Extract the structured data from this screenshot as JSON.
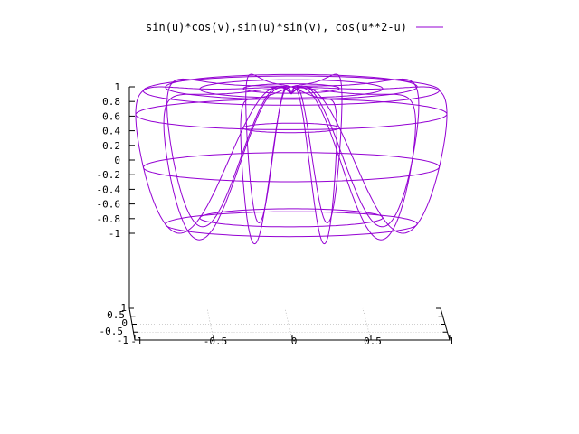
{
  "chart_data": {
    "type": "surface",
    "title": "",
    "legend": {
      "entry": "sin(u)*cos(v),sin(u)*sin(v), cos(u**2-u)",
      "color": "#9400d3",
      "placement": "top-right"
    },
    "parametric": {
      "x": "sin(u)*cos(v)",
      "y": "sin(u)*sin(v)",
      "z": "cos(u**2-u)"
    },
    "z_ticks": [
      "1",
      "0.8",
      "0.6",
      "0.4",
      "0.2",
      "0",
      "-0.2",
      "-0.4",
      "-0.6",
      "-0.8",
      "-1"
    ],
    "x_ticks": [
      "-1",
      "-0.5",
      "0",
      "0.5",
      "1"
    ],
    "y_ticks": [
      "1",
      "0.5",
      "0",
      "-0.5",
      "-1"
    ],
    "xlim": [
      -1,
      1
    ],
    "ylim": [
      -1,
      1
    ],
    "zlim": [
      -1,
      1
    ],
    "grid": true,
    "line_color": "#9400d3",
    "axis_color": "#000000",
    "grid_color": "#a0a0a0"
  }
}
